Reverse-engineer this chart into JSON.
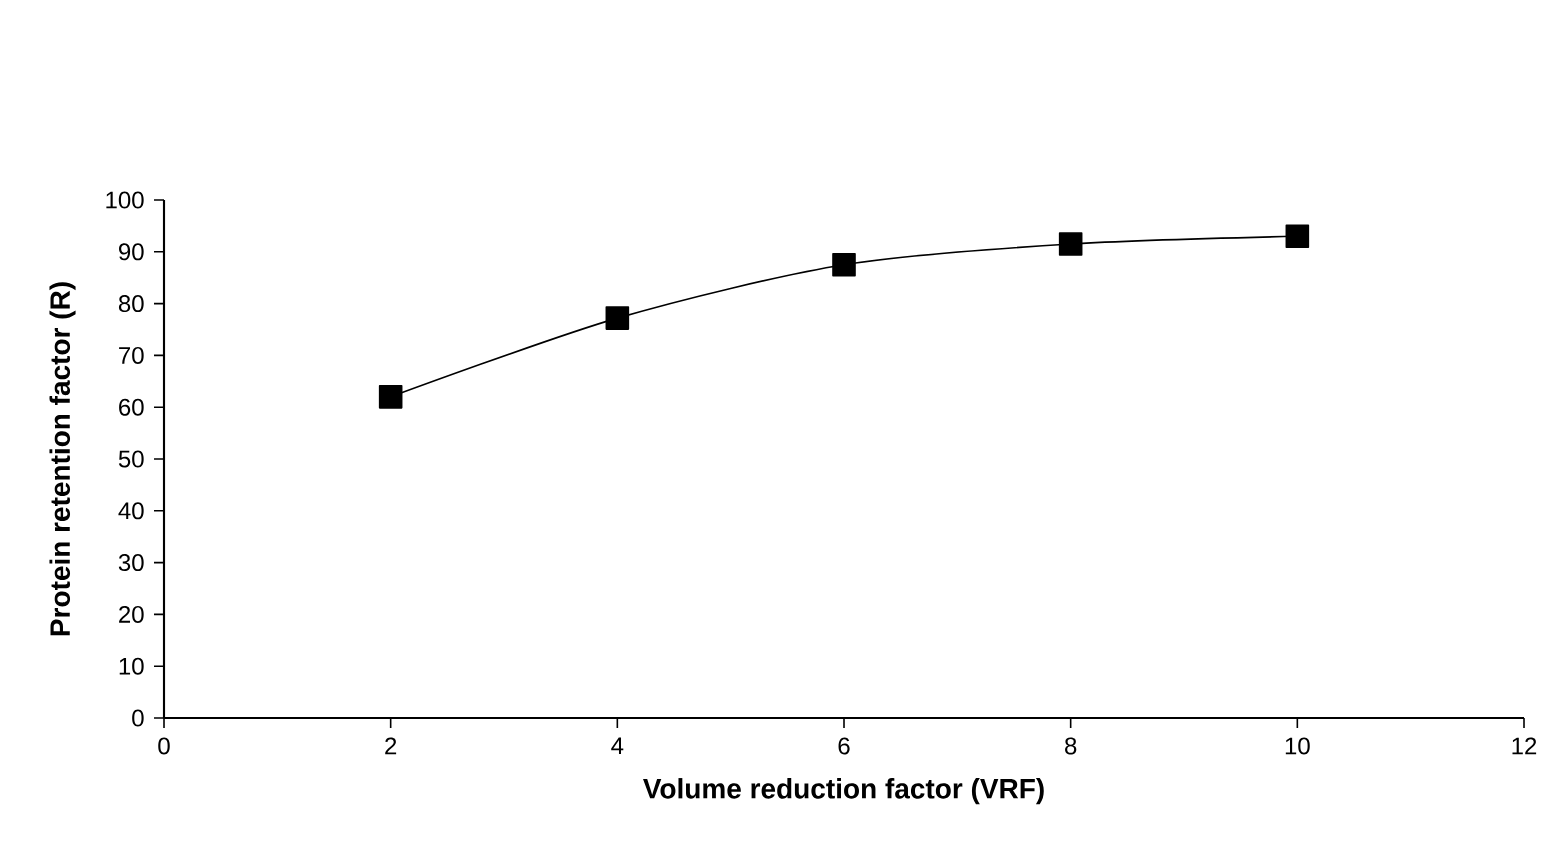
{
  "chart_data": {
    "type": "line",
    "xlabel": "Volume reduction factor (VRF)",
    "ylabel": "Protein retention factor (R)",
    "x": [
      2,
      4,
      6,
      8,
      10
    ],
    "series": [
      {
        "color": "#000000",
        "values": [
          62,
          77.2,
          87.5,
          91.5,
          93
        ]
      }
    ],
    "xlim": [
      0,
      12
    ],
    "xticks": [
      0,
      2,
      4,
      6,
      8,
      10,
      12
    ],
    "ylim": [
      0,
      100
    ],
    "yticks": [
      0,
      10,
      20,
      30,
      40,
      50,
      60,
      70,
      80,
      90,
      100
    ],
    "grid": false,
    "marker": "square",
    "line_style": "solid"
  }
}
